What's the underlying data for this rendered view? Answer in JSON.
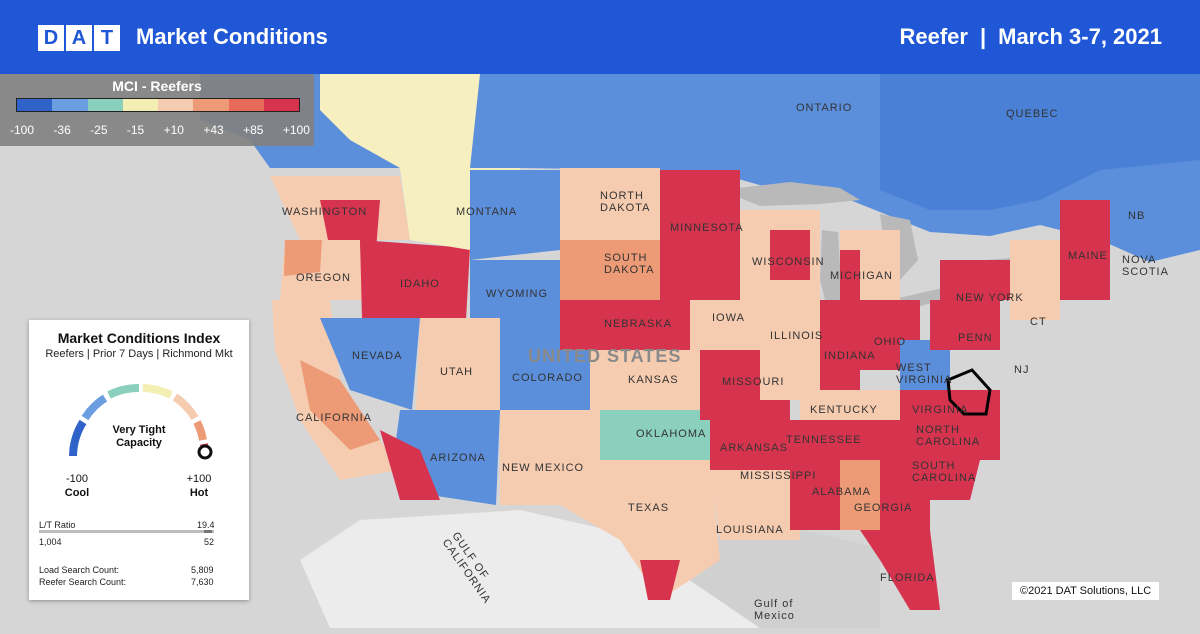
{
  "header": {
    "logo": [
      "D",
      "A",
      "T"
    ],
    "title": "Market Conditions",
    "equipment": "Reefer",
    "separator": "|",
    "dates": "March 3-7, 2021"
  },
  "legend": {
    "title": "MCI - Reefers",
    "colors": [
      "#2f63c9",
      "#6a9ee0",
      "#8bd0bd",
      "#f3efb4",
      "#f6ccb1",
      "#ec9b76",
      "#e76a5a",
      "#d6344e"
    ],
    "ticks": [
      "-100",
      "-36",
      "-25",
      "-15",
      "+10",
      "+43",
      "+85",
      "+100"
    ]
  },
  "mci_card": {
    "title": "Market Conditions Index",
    "subtitle": "Reefers | Prior 7 Days | Richmond Mkt",
    "status_line1": "Very Tight",
    "status_line2": "Capacity",
    "min": "-100",
    "max": "+100",
    "min_label": "Cool",
    "max_label": "Hot",
    "gauge_level": 100,
    "lt_ratio_label": "L/T Ratio",
    "lt_ratio_value": "19.4",
    "loads": "1,004",
    "trucks": "52",
    "load_search_label": "Load Search Count:",
    "load_search_value": "5,809",
    "reefer_search_label": "Reefer Search Count:",
    "reefer_search_value": "7,630"
  },
  "map_labels": {
    "country": "United States",
    "states": [
      "Washington",
      "Montana",
      "North Dakota",
      "Minnesota",
      "Oregon",
      "Idaho",
      "South Dakota",
      "Wisconsin",
      "Michigan",
      "Wyoming",
      "Nebraska",
      "Iowa",
      "Nevada",
      "Utah",
      "Colorado",
      "Kansas",
      "Missouri",
      "Illinois",
      "Indiana",
      "Ohio",
      "Kentucky",
      "Virginia",
      "West Virginia",
      "California",
      "Arizona",
      "New Mexico",
      "Oklahoma",
      "Arkansas",
      "Tennessee",
      "North Carolina",
      "South Carolina",
      "Mississippi",
      "Alabama",
      "Georgia",
      "Texas",
      "Louisiana",
      "Florida",
      "New York",
      "Maine",
      "Penn",
      "NJ",
      "CT"
    ],
    "provinces": [
      "Ontario",
      "Quebec",
      "NB",
      "Nova Scotia"
    ],
    "water": [
      "Gulf of California",
      "Gulf of Mexico"
    ]
  },
  "copyright": "©2021 DAT Solutions, LLC"
}
